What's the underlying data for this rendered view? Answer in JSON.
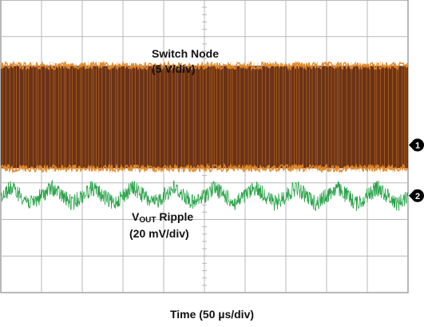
{
  "chart_data": {
    "type": "line",
    "title": "",
    "xlabel": "Time (50 µs/div)",
    "grid": true,
    "divisions": {
      "horizontal": 10,
      "vertical": 8
    },
    "series": [
      {
        "name": "Switch Node",
        "label": "Switch Node",
        "scale": "(5 V/div)",
        "channel": "1",
        "color": "#e08a2c",
        "fill_color": "#6b3216",
        "high_div": 6.2,
        "low_div": 3.4
      },
      {
        "name": "VOUT Ripple",
        "label_main": "V",
        "label_sub": "OUT",
        "label_rest": " Ripple",
        "scale": "(20 mV/div)",
        "channel": "2",
        "color": "#2aa34a",
        "ground_div": 2.65,
        "cycles": 10,
        "amplitude_div": 0.22,
        "noise_div": 0.22
      }
    ]
  }
}
